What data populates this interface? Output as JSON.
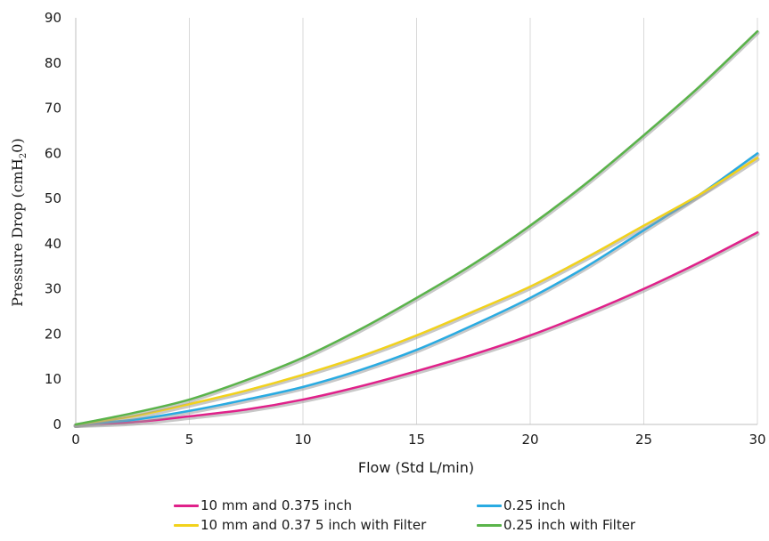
{
  "chart_data": {
    "type": "line",
    "xlabel": "Flow (Std L/min)",
    "ylabel": "Pressure Drop (cmH",
    "ylabel_sub": "2",
    "ylabel_tail": "0)",
    "xlim": [
      0,
      30
    ],
    "ylim": [
      0,
      90
    ],
    "x_ticks": [
      "0",
      "5",
      "10",
      "15",
      "20",
      "25",
      "30"
    ],
    "y_ticks": [
      "0",
      "10",
      "20",
      "30",
      "40",
      "50",
      "60",
      "70",
      "80",
      "90"
    ],
    "grid": "vertical",
    "legend_position": "bottom",
    "series": [
      {
        "name": "10 mm and 0.375 inch",
        "color": "#e0218a",
        "x": [
          0,
          2.5,
          5,
          7.5,
          10,
          12.5,
          15,
          17.5,
          20,
          22.5,
          25,
          27.5,
          30
        ],
        "y": [
          0,
          0.5,
          1.8,
          3.3,
          5.5,
          8.4,
          11.8,
          15.5,
          19.7,
          24.6,
          30,
          36,
          42.5
        ]
      },
      {
        "name": "0.25 inch",
        "color": "#29abe2",
        "x": [
          0,
          2.5,
          5,
          7.5,
          10,
          12.5,
          15,
          17.5,
          20,
          22.5,
          25,
          27.5,
          30
        ],
        "y": [
          0,
          1,
          3.0,
          5.5,
          8.3,
          12,
          16.5,
          22,
          28,
          35,
          43,
          51,
          60
        ]
      },
      {
        "name": "10 mm and 0.37 5 inch with Filter",
        "color": "#f2d21b",
        "x": [
          0,
          2.5,
          5,
          7.5,
          10,
          12.5,
          15,
          17.5,
          20,
          22.5,
          25,
          27.5,
          30
        ],
        "y": [
          0,
          1.8,
          4.5,
          7.5,
          11,
          15,
          19.7,
          25,
          30.5,
          37,
          44,
          51,
          59
        ]
      },
      {
        "name": "0.25 inch with Filter",
        "color": "#5ab44a",
        "x": [
          0,
          2.5,
          5,
          7.5,
          10,
          12.5,
          15,
          17.5,
          20,
          22.5,
          25,
          27.5,
          30
        ],
        "y": [
          0,
          2.5,
          5.5,
          9.8,
          14.8,
          21,
          28,
          35.5,
          44,
          53.5,
          64,
          75,
          87
        ]
      }
    ]
  }
}
